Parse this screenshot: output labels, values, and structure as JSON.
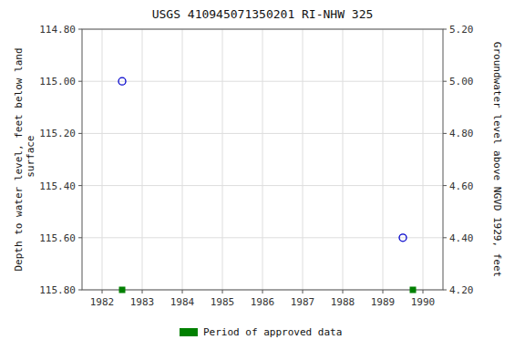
{
  "chart_data": {
    "type": "scatter",
    "title": "USGS 410945071350201 RI-NHW  325",
    "y_label": "Depth to water level, feet below land\n surface",
    "y2_label": "Groundwater level above NGVD 1929, feet",
    "xlim": [
      1981.5,
      1990.5
    ],
    "xticks": [
      1982,
      1983,
      1984,
      1985,
      1986,
      1987,
      1988,
      1989,
      1990
    ],
    "ylim": [
      115.8,
      114.8
    ],
    "yticks": [
      {
        "value": 114.8,
        "label": "114.80"
      },
      {
        "value": 115.0,
        "label": "115.00"
      },
      {
        "value": 115.2,
        "label": "115.20"
      },
      {
        "value": 115.4,
        "label": "115.40"
      },
      {
        "value": 115.6,
        "label": "115.60"
      },
      {
        "value": 115.8,
        "label": "115.80"
      }
    ],
    "y2lim": [
      4.2,
      5.2
    ],
    "y2ticks": [
      {
        "value": 4.2,
        "label": "4.20"
      },
      {
        "value": 4.4,
        "label": "4.40"
      },
      {
        "value": 4.6,
        "label": "4.60"
      },
      {
        "value": 4.8,
        "label": "4.80"
      },
      {
        "value": 5.0,
        "label": "5.00"
      },
      {
        "value": 5.2,
        "label": "5.20"
      }
    ],
    "grid": true,
    "legend": "bottom",
    "series": [
      {
        "color": "#0000cc",
        "marker": "circle",
        "x": [
          1982.5,
          1989.5
        ],
        "values": [
          115.0,
          115.6
        ]
      },
      {
        "name": "Period of approved data",
        "color": "#008000",
        "marker": "square",
        "x": [
          1982.5,
          1989.75
        ],
        "values": [
          115.8,
          115.8
        ]
      }
    ]
  }
}
